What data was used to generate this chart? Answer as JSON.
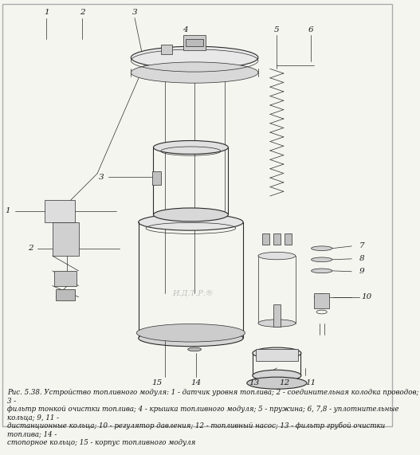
{
  "background_color": "#f5f5f0",
  "border_color": "#cccccc",
  "figure_width": 5.27,
  "figure_height": 5.71,
  "dpi": 100,
  "caption_text": "Рис. 5.38. Устройство топливного модуля: 1 - датчик уровня топлива; 2 - соединительная колодка проводов; 3 -\nфильтр тонкой очистки топлива; 4 - крышка топливного модуля; 5 - пружина; 6, 7,8 - уплотнительные кольца; 9, 11 -\nдистанционные кольца; 10 - регулятор давления; 12 - топливный насос; 13 - фильтр грубой очистки топлива; 14 -\nстопорное кольцо; 15 - корпус топливного модуля",
  "watermark_text": "И.Д.Т.Р.®",
  "line_color": "#2a2a2a",
  "label_color": "#1a1a1a",
  "caption_fontsize": 6.2,
  "label_fontsize": 7.5
}
